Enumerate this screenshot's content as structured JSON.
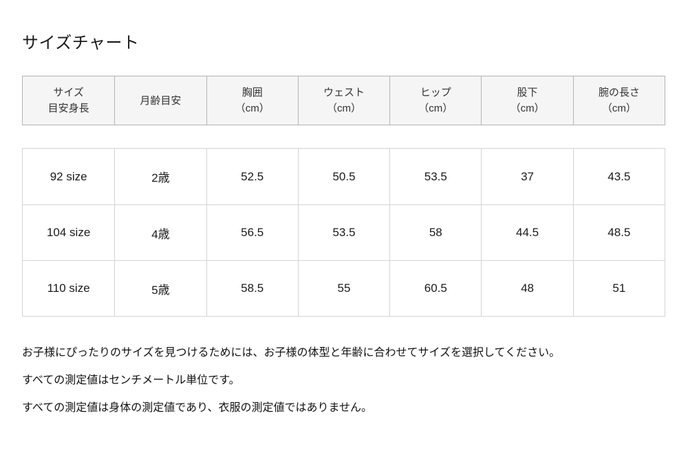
{
  "page": {
    "title": "サイズチャート"
  },
  "table": {
    "headers": [
      [
        "サイズ",
        "目安身長"
      ],
      [
        "月齢目安"
      ],
      [
        "胸囲",
        "（cm）"
      ],
      [
        "ウェスト",
        "（cm）"
      ],
      [
        "ヒップ",
        "（cm）"
      ],
      [
        "股下",
        "（cm）"
      ],
      [
        "腕の長さ",
        "（cm）"
      ]
    ],
    "rows": [
      [
        "92 size",
        "2歳",
        "52.5",
        "50.5",
        "53.5",
        "37",
        "43.5"
      ],
      [
        "104 size",
        "4歳",
        "56.5",
        "53.5",
        "58",
        "44.5",
        "48.5"
      ],
      [
        "110 size",
        "5歳",
        "58.5",
        "55",
        "60.5",
        "48",
        "51"
      ]
    ]
  },
  "notes": [
    "お子様にぴったりのサイズを見つけるためには、お子様の体型と年齢に合わせてサイズを選択してください。",
    "すべての測定値はセンチメートル単位です。",
    "すべての測定値は身体の測定値であり、衣服の測定値ではありません。"
  ],
  "colors": {
    "header_bg": "#f5f5f5",
    "header_border": "#b3b3b3",
    "body_border": "#d4d4d4",
    "text": "#1a1a1a"
  }
}
